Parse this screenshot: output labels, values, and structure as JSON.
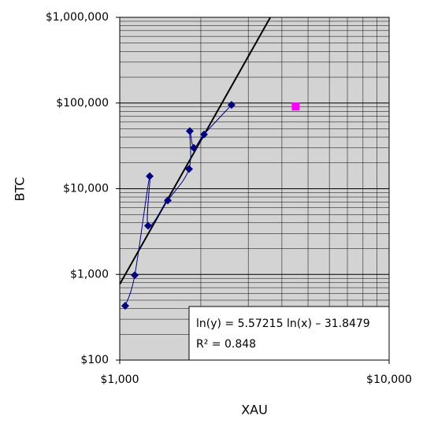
{
  "chart_data": {
    "type": "scatter",
    "x_label": "XAU",
    "y_label": "BTC",
    "xscale": "log",
    "yscale": "log",
    "xlim": [
      1000,
      10000
    ],
    "ylim": [
      100,
      1000000
    ],
    "xticks": [
      {
        "value": 1000,
        "label": "$1,000"
      },
      {
        "value": 10000,
        "label": "$10,000"
      }
    ],
    "yticks": [
      {
        "value": 100,
        "label": "$100"
      },
      {
        "value": 1000,
        "label": "$1,000"
      },
      {
        "value": 10000,
        "label": "$10,000"
      },
      {
        "value": 100000,
        "label": "$100,000"
      },
      {
        "value": 1000000,
        "label": "$1,000,000"
      }
    ],
    "grid": "minor",
    "background": "#d3d3d3",
    "series": [
      {
        "color": "#000080",
        "marker": "diamond",
        "line": "smooth",
        "x": [
          1048,
          1137,
          1292,
          1274,
          1508,
          1808,
          1820,
          1883,
          2055,
          2600
        ],
        "values": [
          430,
          980,
          14000,
          3700,
          7300,
          17000,
          47000,
          30000,
          43000,
          95000
        ]
      },
      {
        "color": "#ff00ff",
        "marker": "square",
        "line": "none",
        "x": [
          4500
        ],
        "values": [
          91000
        ]
      }
    ],
    "trendline": {
      "slope": 5.57215,
      "intercept": -31.8479,
      "r2": 0.848,
      "label": "ln(y) = 5.57215 ln(x) – 31.8479",
      "r2_label": "R² = 0.848"
    }
  }
}
